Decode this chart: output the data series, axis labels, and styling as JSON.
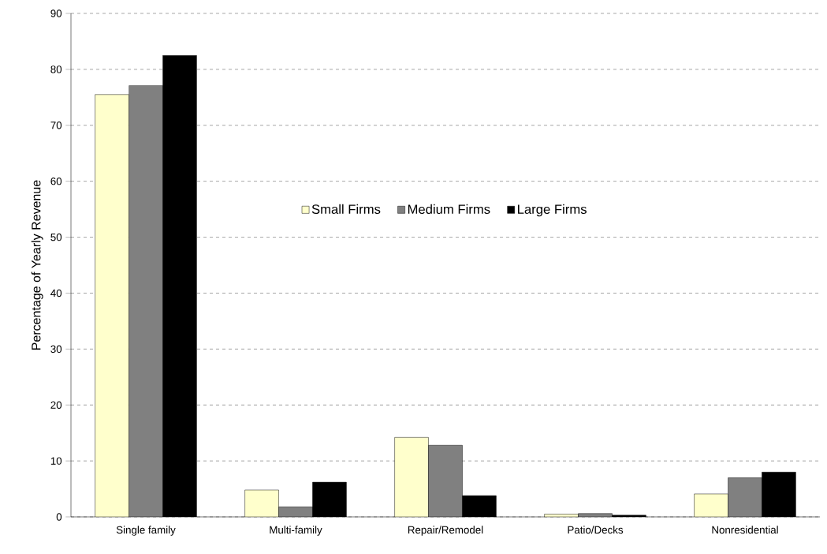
{
  "chart_data": {
    "type": "bar",
    "ylabel": "Percentage of Yearly Revenue",
    "categories": [
      "Single family",
      "Multi-family",
      "Repair/Remodel",
      "Patio/Decks",
      "Nonresidential"
    ],
    "series": [
      {
        "name": "Small Firms",
        "color": "#ffffcc",
        "values": [
          75.5,
          4.8,
          14.2,
          0.5,
          4.1
        ]
      },
      {
        "name": "Medium Firms",
        "color": "#808080",
        "values": [
          77.1,
          1.8,
          12.8,
          0.6,
          7.0
        ]
      },
      {
        "name": "Large Firms",
        "color": "#000000",
        "values": [
          82.5,
          6.2,
          3.8,
          0.3,
          8.0
        ]
      }
    ],
    "ylim": [
      0,
      90
    ],
    "yticks": [
      0,
      10,
      20,
      30,
      40,
      50,
      60,
      70,
      80,
      90
    ],
    "grid": "y",
    "legend": "center"
  }
}
